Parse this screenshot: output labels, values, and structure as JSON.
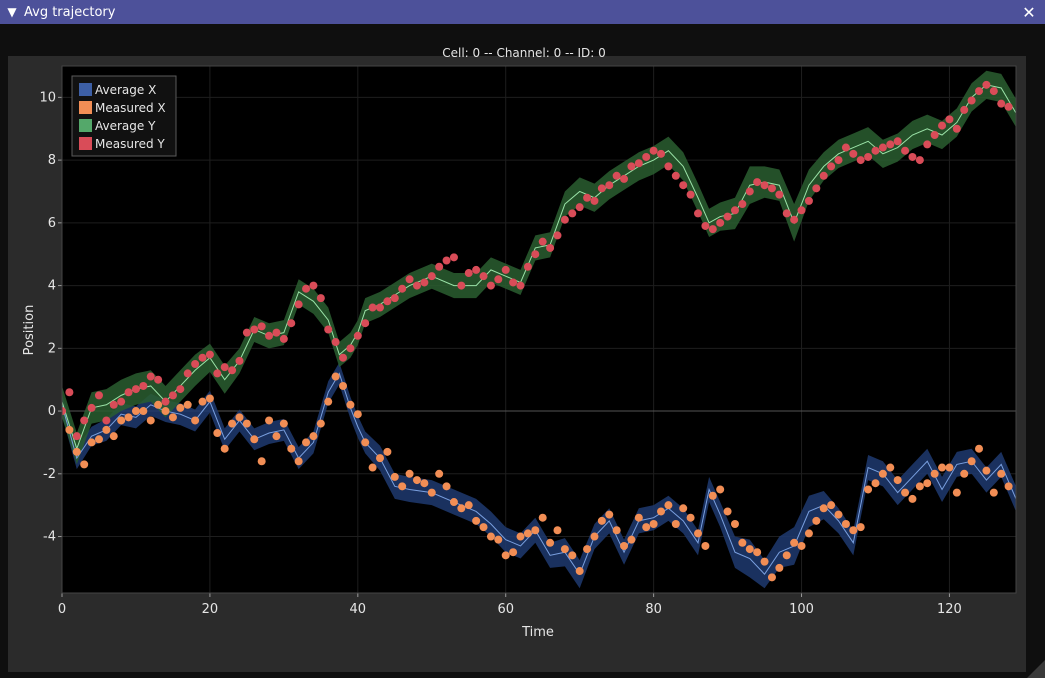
{
  "window": {
    "title": "Avg trajectory",
    "collapse_icon": "triangle-down-icon",
    "close_icon": "close-icon"
  },
  "colors": {
    "titlebar": "#4d519a",
    "frame": "#2b2b2b",
    "plot_bg": "#000000",
    "avg_x": "#3d5fa5",
    "avg_x_band": "#1f3a70",
    "meas_x": "#f28e55",
    "avg_y": "#54a86a",
    "avg_y_band": "#2a5e30",
    "meas_y": "#d94c58"
  },
  "chart_data": {
    "type": "line",
    "title": "Cell: 0 -- Channel: 0 -- ID: 0",
    "xlabel": "Time",
    "ylabel": "Position",
    "xlim": [
      0,
      129
    ],
    "ylim": [
      -5.8,
      11
    ],
    "xticks": [
      0,
      20,
      40,
      60,
      80,
      100,
      120
    ],
    "yticks": [
      -4,
      -2,
      0,
      2,
      4,
      6,
      8,
      10
    ],
    "grid": true,
    "legend_position": "top-left",
    "series": [
      {
        "name": "Average X",
        "kind": "line-with-band",
        "x": [
          0,
          2,
          4,
          6,
          8,
          10,
          12,
          14,
          16,
          18,
          20,
          22,
          24,
          26,
          28,
          30,
          32,
          34,
          36,
          37.5,
          39,
          40,
          41,
          43,
          45,
          47,
          50,
          53,
          56,
          58,
          60,
          62,
          64,
          66,
          68,
          70,
          72,
          74,
          76,
          78,
          80,
          82,
          84,
          86,
          87.5,
          89,
          91,
          93,
          95,
          97,
          99,
          101,
          103,
          105,
          107,
          109,
          111,
          113,
          115,
          117,
          119,
          121,
          123,
          125,
          127,
          129
        ],
        "y": [
          0.2,
          -1.5,
          -0.8,
          -0.6,
          -0.1,
          -0.2,
          0.2,
          0.0,
          -0.1,
          -0.3,
          0.3,
          -0.9,
          -0.3,
          -0.9,
          -0.7,
          -0.6,
          -1.5,
          -1.0,
          0.6,
          1.2,
          0.1,
          -0.5,
          -1.0,
          -1.5,
          -2.4,
          -2.5,
          -2.6,
          -2.9,
          -3.2,
          -3.6,
          -4.1,
          -4.3,
          -3.8,
          -4.6,
          -4.5,
          -5.2,
          -4.0,
          -3.5,
          -4.5,
          -3.5,
          -3.4,
          -3.1,
          -3.5,
          -4.2,
          -2.5,
          -3.3,
          -4.5,
          -4.7,
          -5.2,
          -4.5,
          -4.3,
          -3.2,
          -3.0,
          -3.5,
          -4.2,
          -1.8,
          -2.0,
          -2.6,
          -2.1,
          -1.6,
          -2.5,
          -1.7,
          -1.6,
          -2.2,
          -1.7,
          -2.8
        ],
        "band": [
          0.35,
          0.35,
          0.3,
          0.35,
          0.35,
          0.35,
          0.35,
          0.35,
          0.35,
          0.35,
          0.35,
          0.35,
          0.35,
          0.35,
          0.35,
          0.35,
          0.35,
          0.35,
          0.35,
          0.35,
          0.35,
          0.35,
          0.35,
          0.4,
          0.4,
          0.4,
          0.4,
          0.4,
          0.4,
          0.4,
          0.4,
          0.4,
          0.4,
          0.4,
          0.45,
          0.45,
          0.4,
          0.4,
          0.4,
          0.4,
          0.4,
          0.4,
          0.4,
          0.4,
          0.4,
          0.4,
          0.5,
          0.6,
          0.45,
          0.5,
          0.6,
          0.5,
          0.45,
          0.4,
          0.4,
          0.4,
          0.4,
          0.4,
          0.4,
          0.4,
          0.4,
          0.4,
          0.4,
          0.4,
          0.4,
          0.4
        ]
      },
      {
        "name": "Measured X",
        "kind": "points",
        "x": [
          0,
          1,
          2,
          3,
          4,
          5,
          6,
          7,
          8,
          9,
          10,
          11,
          12,
          13,
          14,
          15,
          16,
          17,
          18,
          19,
          20,
          21,
          22,
          23,
          24,
          25,
          26,
          27,
          28,
          29,
          30,
          31,
          32,
          33,
          34,
          35,
          36,
          37,
          38,
          39,
          40,
          41,
          42,
          43,
          44,
          45,
          46,
          47,
          48,
          49,
          50,
          51,
          52,
          53,
          54,
          55,
          56,
          57,
          58,
          59,
          60,
          61,
          62,
          63,
          64,
          65,
          66,
          67,
          68,
          69,
          70,
          71,
          72,
          73,
          74,
          75,
          76,
          77,
          78,
          79,
          80,
          81,
          82,
          83,
          84,
          85,
          86,
          87,
          88,
          89,
          90,
          91,
          92,
          93,
          94,
          95,
          96,
          97,
          98,
          99,
          100,
          101,
          102,
          103,
          104,
          105,
          106,
          107,
          108,
          109,
          110,
          111,
          112,
          113,
          114,
          115,
          116,
          117,
          118,
          119,
          120,
          121,
          122,
          123,
          124,
          125,
          126,
          127,
          128
        ],
        "y": [
          0.0,
          -0.6,
          -1.3,
          -1.7,
          -1.0,
          -0.9,
          -0.6,
          -0.8,
          -0.3,
          -0.2,
          0.0,
          0.0,
          -0.3,
          0.2,
          0.0,
          -0.2,
          0.1,
          0.2,
          -0.3,
          0.3,
          0.4,
          -0.7,
          -1.2,
          -0.4,
          -0.2,
          -0.4,
          -0.9,
          -1.6,
          -0.3,
          -0.8,
          -0.4,
          -1.2,
          -1.6,
          -1.0,
          -0.8,
          -0.4,
          0.3,
          1.1,
          0.8,
          0.2,
          -0.1,
          -1.0,
          -1.8,
          -1.5,
          -1.3,
          -2.1,
          -2.4,
          -2.0,
          -2.2,
          -2.3,
          -2.6,
          -2.0,
          -2.4,
          -2.9,
          -3.1,
          -3.0,
          -3.5,
          -3.7,
          -4.0,
          -4.1,
          -4.6,
          -4.5,
          -4.0,
          -3.9,
          -3.8,
          -3.4,
          -4.2,
          -3.8,
          -4.4,
          -4.6,
          -5.1,
          -4.4,
          -4.0,
          -3.5,
          -3.3,
          -3.8,
          -4.3,
          -4.1,
          -3.4,
          -3.7,
          -3.6,
          -3.2,
          -3.0,
          -3.6,
          -3.1,
          -3.4,
          -3.9,
          -4.3,
          -2.7,
          -2.5,
          -3.2,
          -3.6,
          -4.2,
          -4.4,
          -4.5,
          -4.8,
          -5.3,
          -5.0,
          -4.6,
          -4.2,
          -4.3,
          -3.9,
          -3.5,
          -3.1,
          -3.0,
          -3.3,
          -3.6,
          -3.8,
          -3.7,
          -2.5,
          -2.3,
          -2.0,
          -1.8,
          -2.2,
          -2.6,
          -2.8,
          -2.4,
          -2.3,
          -2.0,
          -1.8,
          -1.8,
          -2.6,
          -2.0,
          -1.6,
          -1.2,
          -1.9,
          -2.6,
          -2.0,
          -2.4
        ]
      },
      {
        "name": "Average Y",
        "kind": "line-with-band",
        "x": [
          0,
          2,
          4,
          6,
          8,
          10,
          12,
          14,
          16,
          18,
          20,
          22,
          24,
          26,
          28,
          30,
          32,
          34,
          36,
          37.5,
          39,
          40,
          41,
          43,
          45,
          47,
          50,
          53,
          56,
          58,
          60,
          62,
          64,
          66,
          68,
          70,
          72,
          74,
          76,
          78,
          80,
          82,
          84,
          86,
          87.5,
          89,
          91,
          93,
          95,
          97,
          99,
          101,
          103,
          105,
          107,
          109,
          111,
          113,
          115,
          117,
          119,
          121,
          123,
          125,
          127,
          129
        ],
        "y": [
          0.3,
          -1.2,
          0.1,
          0.2,
          0.5,
          0.7,
          0.8,
          0.3,
          0.8,
          1.3,
          1.7,
          1.0,
          1.6,
          2.6,
          2.4,
          2.5,
          3.8,
          3.5,
          2.9,
          1.8,
          2.1,
          2.5,
          3.2,
          3.4,
          3.7,
          4.0,
          4.3,
          4.0,
          4.0,
          4.5,
          4.3,
          4.1,
          5.2,
          5.3,
          6.6,
          7.0,
          6.8,
          7.2,
          7.5,
          7.8,
          8.0,
          8.3,
          7.8,
          6.8,
          6.0,
          6.2,
          6.3,
          7.2,
          7.3,
          7.2,
          6.0,
          7.2,
          7.8,
          8.2,
          8.4,
          8.6,
          8.2,
          8.4,
          8.8,
          9.0,
          8.8,
          9.2,
          10.0,
          10.4,
          10.3,
          9.5
        ],
        "band": [
          0.5,
          0.5,
          0.5,
          0.5,
          0.5,
          0.5,
          0.5,
          0.5,
          0.5,
          0.5,
          0.45,
          0.45,
          0.4,
          0.4,
          0.4,
          0.4,
          0.4,
          0.4,
          0.4,
          0.4,
          0.4,
          0.4,
          0.4,
          0.4,
          0.4,
          0.4,
          0.4,
          0.4,
          0.4,
          0.4,
          0.4,
          0.4,
          0.4,
          0.4,
          0.4,
          0.45,
          0.45,
          0.45,
          0.45,
          0.45,
          0.45,
          0.45,
          0.45,
          0.45,
          0.45,
          0.45,
          0.5,
          0.6,
          0.5,
          0.5,
          0.6,
          0.5,
          0.45,
          0.45,
          0.45,
          0.45,
          0.45,
          0.45,
          0.45,
          0.45,
          0.45,
          0.45,
          0.45,
          0.45,
          0.45,
          0.45
        ]
      },
      {
        "name": "Measured Y",
        "kind": "points",
        "x": [
          0,
          1,
          2,
          3,
          4,
          5,
          6,
          7,
          8,
          9,
          10,
          11,
          12,
          13,
          14,
          15,
          16,
          17,
          18,
          19,
          20,
          21,
          22,
          23,
          24,
          25,
          26,
          27,
          28,
          29,
          30,
          31,
          32,
          33,
          34,
          35,
          36,
          37,
          38,
          39,
          40,
          41,
          42,
          43,
          44,
          45,
          46,
          47,
          48,
          49,
          50,
          51,
          52,
          53,
          54,
          55,
          56,
          57,
          58,
          59,
          60,
          61,
          62,
          63,
          64,
          65,
          66,
          67,
          68,
          69,
          70,
          71,
          72,
          73,
          74,
          75,
          76,
          77,
          78,
          79,
          80,
          81,
          82,
          83,
          84,
          85,
          86,
          87,
          88,
          89,
          90,
          91,
          92,
          93,
          94,
          95,
          96,
          97,
          98,
          99,
          100,
          101,
          102,
          103,
          104,
          105,
          106,
          107,
          108,
          109,
          110,
          111,
          112,
          113,
          114,
          115,
          116,
          117,
          118,
          119,
          120,
          121,
          122,
          123,
          124,
          125,
          126,
          127,
          128
        ],
        "y": [
          0.0,
          0.6,
          -0.8,
          -0.3,
          0.1,
          0.5,
          -0.3,
          0.2,
          0.3,
          0.6,
          0.7,
          0.8,
          1.1,
          1.0,
          0.3,
          0.5,
          0.7,
          1.2,
          1.5,
          1.7,
          1.8,
          1.2,
          1.4,
          1.3,
          1.6,
          2.5,
          2.6,
          2.7,
          2.4,
          2.5,
          2.3,
          2.8,
          3.4,
          3.9,
          4.0,
          3.6,
          2.6,
          2.2,
          1.7,
          2.0,
          2.4,
          2.8,
          3.3,
          3.3,
          3.5,
          3.6,
          3.9,
          4.2,
          4.0,
          4.1,
          4.3,
          4.6,
          4.8,
          4.9,
          4.0,
          4.4,
          4.5,
          4.3,
          4.0,
          4.2,
          4.5,
          4.1,
          4.0,
          4.6,
          5.0,
          5.4,
          5.2,
          5.6,
          6.1,
          6.3,
          6.5,
          6.8,
          6.7,
          7.1,
          7.2,
          7.5,
          7.4,
          7.8,
          7.9,
          8.1,
          8.3,
          8.2,
          7.8,
          7.5,
          7.2,
          6.9,
          6.3,
          5.9,
          5.8,
          6.0,
          6.2,
          6.4,
          6.6,
          7.0,
          7.3,
          7.2,
          7.1,
          6.9,
          6.3,
          6.1,
          6.4,
          6.7,
          7.1,
          7.5,
          7.8,
          8.0,
          8.4,
          8.2,
          8.0,
          8.1,
          8.3,
          8.4,
          8.5,
          8.6,
          8.3,
          8.1,
          8.0,
          8.5,
          8.8,
          9.1,
          9.3,
          9.0,
          9.6,
          9.9,
          10.2,
          10.4,
          10.2,
          9.8,
          9.7
        ]
      }
    ]
  }
}
